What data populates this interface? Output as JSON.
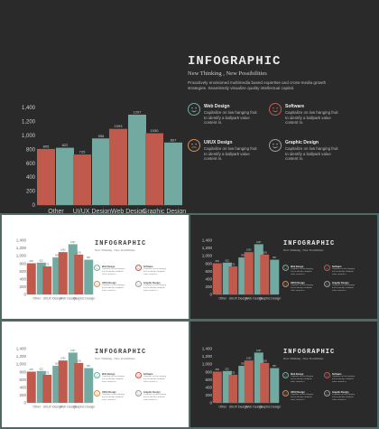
{
  "colors": {
    "red": "#bf5a4c",
    "teal": "#72aaa2",
    "orange": "#d08c56",
    "gray": "#9b9b9b",
    "dark_bg": "#2a2a2a",
    "light_bg": "#ffffff",
    "frame": "#4d6a64"
  },
  "infographic": {
    "title": "INFOGRAPHIC",
    "subtitle": "New Thinking , New Possibilities",
    "description": "Proactively envisioned multimedia based expertise and cross-media growth strategies. Seamlessly visualize quality intellectual capital.",
    "features": [
      {
        "title": "Web Design",
        "desc": "Capitalize on low hanging fruit to identify a ballpark value content in.",
        "icon": "smile-icon",
        "color": "#72aaa2"
      },
      {
        "title": "Software",
        "desc": "Capitalize on low hanging fruit to identify a ballpark value content in.",
        "icon": "smile-icon",
        "color": "#bf5a4c"
      },
      {
        "title": "UI/UX Design",
        "desc": "Capitalize on low hanging fruit to identify a ballpark value content in.",
        "icon": "neutral-face-icon",
        "color": "#d08c56"
      },
      {
        "title": "Graphic Design",
        "desc": "Capitalize on low hanging fruit to identify a ballpark value content in.",
        "icon": "smile-icon",
        "color": "#9b9b9b"
      }
    ]
  },
  "chart_data": {
    "type": "bar",
    "categories": [
      "Other",
      "UI/UX Design",
      "Web Design",
      "Graphic Design"
    ],
    "series": [
      {
        "values": [
          805,
          725,
          1093,
          1030
        ],
        "color": "#bf5a4c"
      },
      {
        "values": [
          822,
          956,
          1297,
          897
        ],
        "color": "#72aaa2"
      }
    ],
    "data_labels": [
      [
        "805",
        "822"
      ],
      [
        "725",
        "956"
      ],
      [
        "1093",
        "1297"
      ],
      [
        "1030",
        "897"
      ]
    ],
    "ylim": [
      0,
      1400
    ],
    "yticks": [
      "0",
      "200",
      "400",
      "600",
      "800",
      "1,000",
      "1,200",
      "1,400"
    ],
    "grid": false,
    "legend": "none"
  }
}
